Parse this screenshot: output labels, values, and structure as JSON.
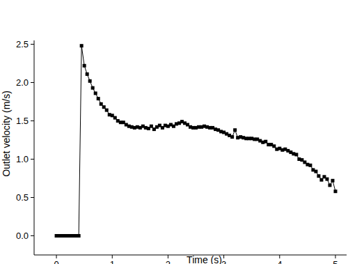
{
  "chart_data": {
    "type": "line",
    "x_label": "Time (s)",
    "y_label": "Outlet velocity (m/s)",
    "x": [
      0,
      0.05,
      0.1,
      0.15,
      0.2,
      0.25,
      0.3,
      0.35,
      0.4,
      0.45,
      0.5,
      0.55,
      0.6,
      0.65,
      0.7,
      0.75,
      0.8,
      0.85,
      0.9,
      0.95,
      1.0,
      1.05,
      1.1,
      1.15,
      1.2,
      1.25,
      1.3,
      1.35,
      1.4,
      1.45,
      1.5,
      1.55,
      1.6,
      1.65,
      1.7,
      1.75,
      1.8,
      1.85,
      1.9,
      1.95,
      2.0,
      2.05,
      2.1,
      2.15,
      2.2,
      2.25,
      2.3,
      2.35,
      2.4,
      2.45,
      2.5,
      2.55,
      2.6,
      2.65,
      2.7,
      2.75,
      2.8,
      2.85,
      2.9,
      2.95,
      3.0,
      3.05,
      3.1,
      3.15,
      3.2,
      3.25,
      3.3,
      3.35,
      3.4,
      3.45,
      3.5,
      3.55,
      3.6,
      3.65,
      3.7,
      3.75,
      3.8,
      3.85,
      3.9,
      3.95,
      4.0,
      4.05,
      4.1,
      4.15,
      4.2,
      4.25,
      4.3,
      4.35,
      4.4,
      4.45,
      4.5,
      4.55,
      4.6,
      4.65,
      4.7,
      4.75,
      4.8,
      4.85,
      4.9,
      4.95,
      5.0
    ],
    "series": [
      {
        "name": "Outlet velocity",
        "color": "#000000",
        "marker": "square",
        "line_style": "solid",
        "values": [
          0,
          0,
          0,
          0,
          0,
          0,
          0,
          0,
          0,
          2.48,
          2.22,
          2.11,
          2.02,
          1.93,
          1.86,
          1.79,
          1.72,
          1.68,
          1.64,
          1.58,
          1.57,
          1.54,
          1.5,
          1.48,
          1.48,
          1.45,
          1.43,
          1.42,
          1.41,
          1.42,
          1.41,
          1.43,
          1.41,
          1.4,
          1.43,
          1.39,
          1.42,
          1.44,
          1.41,
          1.44,
          1.43,
          1.45,
          1.43,
          1.46,
          1.47,
          1.49,
          1.47,
          1.45,
          1.42,
          1.41,
          1.41,
          1.42,
          1.42,
          1.43,
          1.42,
          1.41,
          1.41,
          1.39,
          1.38,
          1.36,
          1.35,
          1.33,
          1.31,
          1.29,
          1.38,
          1.28,
          1.29,
          1.28,
          1.27,
          1.27,
          1.27,
          1.26,
          1.26,
          1.24,
          1.22,
          1.23,
          1.19,
          1.19,
          1.17,
          1.13,
          1.14,
          1.12,
          1.13,
          1.11,
          1.09,
          1.07,
          1.06,
          1.0,
          0.99,
          0.96,
          0.93,
          0.92,
          0.86,
          0.84,
          0.78,
          0.73,
          0.77,
          0.74,
          0.66,
          0.72,
          0.58
        ]
      }
    ],
    "xlim": [
      -0.4,
      5.2
    ],
    "ylim": [
      -0.25,
      2.55
    ],
    "xticks": [
      0,
      1,
      2,
      3,
      4,
      5
    ],
    "yticks": [
      {
        "value": 0,
        "label": "0.0"
      },
      {
        "value": 0.5,
        "label": "0.5"
      },
      {
        "value": 1,
        "label": "1.0"
      },
      {
        "value": 1.5,
        "label": "1.5"
      },
      {
        "value": 2,
        "label": "2.0"
      },
      {
        "value": 2.5,
        "label": "2.5"
      }
    ],
    "grid": false
  }
}
